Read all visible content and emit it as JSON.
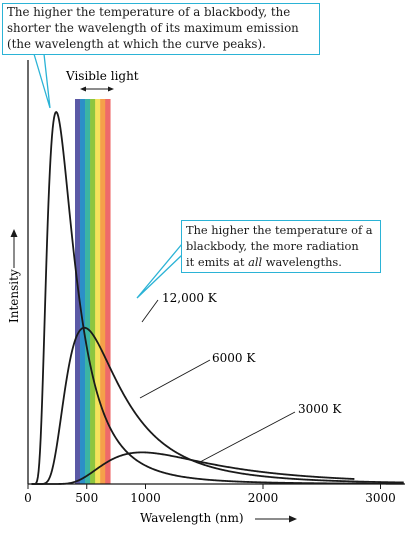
{
  "chart_data": {
    "type": "line",
    "xlabel": "Wavelength (nm)",
    "ylabel": "Intensity",
    "xlim": [
      0,
      3200
    ],
    "x_ticks": [
      "0",
      "500",
      "1000",
      "2000",
      "3000"
    ],
    "x_tick_values": [
      0,
      500,
      1000,
      2000,
      3000
    ],
    "visible_band_label": "Visible light",
    "visible_band_range": [
      400,
      700
    ],
    "visible_band_colors": [
      "#5b59a6",
      "#2b8fc8",
      "#3bb5a3",
      "#8dc63f",
      "#f4e35c",
      "#f5a04a",
      "#ee6a6a"
    ],
    "series": [
      {
        "name": "12,000 K",
        "label": "12,000 K",
        "temperature_K": 12000,
        "peak_wavelength_nm": 240,
        "peak_intensity": 1.0
      },
      {
        "name": "6000 K",
        "label": "6000 K",
        "temperature_K": 6000,
        "peak_wavelength_nm": 480,
        "peak_intensity": 0.42
      },
      {
        "name": "3000 K",
        "label": "3000 K",
        "temperature_K": 3000,
        "peak_wavelength_nm": 970,
        "peak_intensity": 0.085
      }
    ],
    "annotations": {
      "peak_shift": [
        "The higher the temperature of a blackbody, the",
        "shorter the wavelength of its maximum emission",
        "(the wavelength at which the curve peaks)."
      ],
      "more_radiation": [
        "The higher the temperature of a",
        "blackbody, the more radiation",
        "it emits at ",
        "all",
        " wavelengths."
      ]
    },
    "colors": {
      "curve": "#1a1a1a",
      "callout": "#2bb3d6"
    }
  }
}
